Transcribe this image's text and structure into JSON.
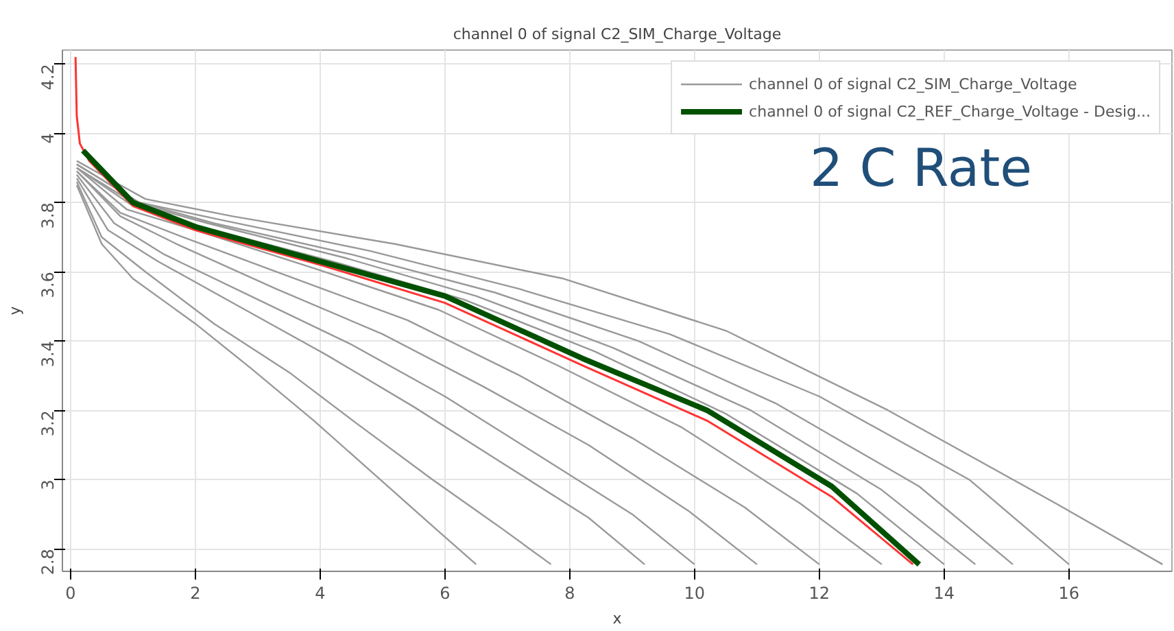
{
  "chart_data": {
    "type": "line",
    "title": "channel 0 of signal C2_SIM_Charge_Voltage",
    "xlabel": "x",
    "ylabel": "y",
    "annotations": [
      "2 C Rate"
    ],
    "xlim": [
      -0.13,
      17.65
    ],
    "ylim": [
      2.735,
      4.24
    ],
    "xticks": [
      0,
      2,
      4,
      6,
      8,
      10,
      12,
      14,
      16
    ],
    "yticks": [
      2.8,
      3,
      3.2,
      3.4,
      3.6,
      3.8,
      4,
      4.2
    ],
    "grid": true,
    "legend": "top right",
    "series": [
      {
        "name": "channel 0 of signal C2_SIM_Charge_Voltage",
        "color": "#999999",
        "x": [
          0.1,
          1.2,
          2.6,
          5.2,
          7.9,
          10.5,
          13.1,
          15.8,
          17.5
        ],
        "values": [
          3.92,
          3.81,
          3.76,
          3.68,
          3.58,
          3.43,
          3.2,
          2.93,
          2.755
        ]
      },
      {
        "color": "#999999",
        "x": [
          0.1,
          1.1,
          2.4,
          4.8,
          7.2,
          9.6,
          12,
          14.4,
          16
        ],
        "values": [
          3.91,
          3.8,
          3.75,
          3.66,
          3.55,
          3.42,
          3.24,
          3.0,
          2.755
        ]
      },
      {
        "color": "#999999",
        "x": [
          0.1,
          1.1,
          2.3,
          4.5,
          6.8,
          9.1,
          11.3,
          13.6,
          15.1
        ],
        "values": [
          3.91,
          3.8,
          3.74,
          3.65,
          3.54,
          3.4,
          3.22,
          2.98,
          2.755
        ]
      },
      {
        "color": "#999999",
        "x": [
          0.1,
          1,
          2.2,
          4.4,
          6.5,
          8.7,
          10.9,
          13,
          14.5
        ],
        "values": [
          3.9,
          3.8,
          3.74,
          3.64,
          3.53,
          3.38,
          3.2,
          2.97,
          2.755
        ]
      },
      {
        "color": "#999999",
        "x": [
          0.1,
          1,
          2.1,
          4.2,
          6.3,
          8.4,
          10.5,
          12.6,
          14
        ],
        "values": [
          3.9,
          3.79,
          3.73,
          3.63,
          3.52,
          3.37,
          3.19,
          2.96,
          2.755
        ]
      },
      {
        "color": "#999999",
        "x": [
          0.1,
          0.9,
          2,
          3.9,
          5.9,
          7.8,
          9.8,
          11.7,
          13
        ],
        "values": [
          3.9,
          3.78,
          3.72,
          3.61,
          3.49,
          3.33,
          3.15,
          2.93,
          2.755
        ]
      },
      {
        "color": "#999999",
        "x": [
          0.1,
          0.8,
          1.8,
          3.6,
          5.4,
          7.2,
          9,
          10.8,
          12
        ],
        "values": [
          3.89,
          3.77,
          3.7,
          3.58,
          3.46,
          3.3,
          3.12,
          2.92,
          2.755
        ]
      },
      {
        "color": "#999999",
        "x": [
          0.1,
          0.8,
          1.7,
          3.3,
          5,
          6.6,
          8.3,
          9.9,
          11
        ],
        "values": [
          3.89,
          3.76,
          3.68,
          3.55,
          3.42,
          3.27,
          3.1,
          2.91,
          2.755
        ]
      },
      {
        "color": "#999999",
        "x": [
          0.1,
          0.7,
          1.5,
          3,
          4.5,
          6,
          7.5,
          9,
          10
        ],
        "values": [
          3.88,
          3.74,
          3.65,
          3.52,
          3.39,
          3.24,
          3.07,
          2.9,
          2.755
        ]
      },
      {
        "color": "#999999",
        "x": [
          0.1,
          0.6,
          1.4,
          2.8,
          4.1,
          5.5,
          6.9,
          8.3,
          9.2
        ],
        "values": [
          3.87,
          3.72,
          3.63,
          3.49,
          3.36,
          3.21,
          3.05,
          2.89,
          2.755
        ]
      },
      {
        "color": "#999999",
        "x": [
          0.1,
          0.5,
          1.2,
          2.3,
          3.5,
          4.6,
          5.8,
          6.9,
          7.7
        ],
        "values": [
          3.86,
          3.7,
          3.6,
          3.45,
          3.31,
          3.16,
          3.0,
          2.86,
          2.755
        ]
      },
      {
        "color": "#999999",
        "x": [
          0.1,
          0.5,
          1,
          2,
          2.9,
          3.9,
          4.9,
          5.9,
          6.5
        ],
        "values": [
          3.85,
          3.68,
          3.58,
          3.45,
          3.32,
          3.17,
          3.01,
          2.85,
          2.755
        ]
      },
      {
        "color": "#ff3333",
        "x": [
          0.08,
          0.1,
          0.15,
          0.3,
          1,
          2,
          4,
          6,
          8.2,
          10.2,
          12.2,
          13.5
        ],
        "values": [
          4.22,
          4.05,
          3.97,
          3.92,
          3.79,
          3.72,
          3.62,
          3.51,
          3.33,
          3.17,
          2.95,
          2.755
        ]
      },
      {
        "name": "channel 0 of signal C2_REF_Charge_Voltage - Desig...",
        "color": "#005000",
        "x": [
          0.2,
          1,
          2,
          4,
          6,
          8.2,
          10.2,
          12.2,
          13.6
        ],
        "values": [
          3.95,
          3.8,
          3.73,
          3.63,
          3.53,
          3.35,
          3.2,
          2.98,
          2.755
        ]
      }
    ]
  }
}
